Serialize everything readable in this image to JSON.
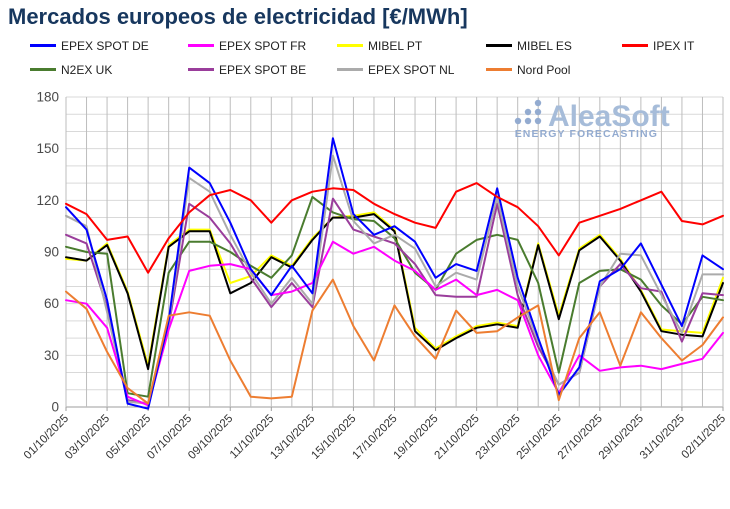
{
  "title": "Mercados europeos de electricidad [€/MWh]",
  "watermark": {
    "name": "AleaSoft",
    "tagline": "ENERGY FORECASTING",
    "color": "#a6bcd9",
    "tagline_color": "#93abd0"
  },
  "chart_data": {
    "type": "line",
    "title": "Mercados europeos de electricidad [€/MWh]",
    "xlabel": "",
    "ylabel": "",
    "ylim": [
      0,
      180
    ],
    "y_tick_step": 30,
    "y_minor_step": 10,
    "x_label_every": 2,
    "grid": "on",
    "legend_position": "top",
    "x_labels": [
      "01/10/2025",
      "02/10/2025",
      "03/10/2025",
      "04/10/2025",
      "05/10/2025",
      "06/10/2025",
      "07/10/2025",
      "08/10/2025",
      "09/10/2025",
      "10/10/2025",
      "11/10/2025",
      "12/10/2025",
      "13/10/2025",
      "14/10/2025",
      "15/10/2025",
      "16/10/2025",
      "17/10/2025",
      "18/10/2025",
      "19/10/2025",
      "20/10/2025",
      "21/10/2025",
      "22/10/2025",
      "23/10/2025",
      "24/10/2025",
      "25/10/2025",
      "26/10/2025",
      "27/10/2025",
      "28/10/2025",
      "29/10/2025",
      "30/10/2025",
      "31/10/2025",
      "01/11/2025",
      "02/11/2025"
    ],
    "series": [
      {
        "name": "EPEX SPOT DE",
        "color": "#0000ff",
        "values": [
          116,
          103,
          62,
          2,
          -1,
          50,
          139,
          130,
          107,
          80,
          65,
          82,
          66,
          156,
          112,
          100,
          105,
          96,
          75,
          83,
          79,
          127,
          75,
          40,
          7,
          23,
          73,
          80,
          95,
          71,
          47,
          88,
          80
        ]
      },
      {
        "name": "EPEX SPOT FR",
        "color": "#ff00ff",
        "values": [
          62,
          60,
          46,
          6,
          1,
          45,
          79,
          82,
          83,
          80,
          65,
          67,
          72,
          96,
          89,
          93,
          85,
          79,
          68,
          74,
          65,
          68,
          62,
          30,
          8,
          30,
          21,
          23,
          24,
          22,
          25,
          28,
          43
        ]
      },
      {
        "name": "MIBEL PT",
        "color": "#ffff00",
        "values": [
          86,
          85,
          95,
          67,
          24,
          94,
          103,
          103,
          72,
          76,
          88,
          82,
          98,
          110,
          111,
          113,
          103,
          46,
          34,
          41,
          47,
          49,
          47,
          95,
          53,
          92,
          100,
          86,
          68,
          45,
          44,
          43,
          75
        ]
      },
      {
        "name": "MIBEL ES",
        "color": "#000000",
        "values": [
          87,
          85,
          94,
          66,
          22,
          93,
          102,
          102,
          66,
          72,
          87,
          81,
          97,
          110,
          110,
          112,
          102,
          44,
          33,
          40,
          46,
          48,
          46,
          94,
          51,
          91,
          99,
          85,
          67,
          44,
          42,
          41,
          72
        ]
      },
      {
        "name": "IPEX IT",
        "color": "#ff0000",
        "values": [
          118,
          112,
          97,
          99,
          78,
          98,
          113,
          123,
          126,
          120,
          107,
          120,
          125,
          127,
          126,
          118,
          112,
          107,
          104,
          125,
          130,
          122,
          116,
          105,
          88,
          107,
          111,
          115,
          120,
          125,
          108,
          106,
          111
        ]
      },
      {
        "name": "N2EX UK",
        "color": "#4a7c2f",
        "values": [
          93,
          90,
          89,
          8,
          6,
          78,
          96,
          96,
          90,
          82,
          75,
          88,
          122,
          113,
          109,
          108,
          98,
          78,
          68,
          89,
          97,
          100,
          97,
          72,
          20,
          72,
          79,
          80,
          74,
          59,
          48,
          64,
          62
        ]
      },
      {
        "name": "EPEX SPOT BE",
        "color": "#9a3d9b",
        "values": [
          100,
          95,
          58,
          4,
          2,
          47,
          118,
          110,
          95,
          75,
          58,
          72,
          58,
          121,
          103,
          99,
          95,
          83,
          65,
          64,
          64,
          118,
          65,
          35,
          13,
          20,
          70,
          83,
          69,
          67,
          38,
          66,
          65
        ]
      },
      {
        "name": "EPEX SPOT NL",
        "color": "#ababab",
        "values": [
          111,
          105,
          55,
          3,
          2,
          48,
          133,
          125,
          100,
          78,
          60,
          75,
          60,
          146,
          108,
          95,
          100,
          92,
          70,
          78,
          74,
          122,
          70,
          38,
          13,
          20,
          70,
          89,
          88,
          65,
          43,
          77,
          77
        ]
      },
      {
        "name": "Nord Pool",
        "color": "#ed7d31",
        "values": [
          67,
          57,
          32,
          11,
          2,
          53,
          55,
          53,
          27,
          6,
          5,
          6,
          56,
          74,
          47,
          27,
          59,
          41,
          28,
          56,
          43,
          44,
          52,
          59,
          4,
          40,
          55,
          24,
          55,
          40,
          27,
          36,
          52
        ]
      }
    ],
    "draw_order": [
      2,
      3,
      5,
      6,
      7,
      1,
      0,
      4,
      8
    ],
    "colors": {
      "title": "#17375e",
      "grid_minor_h": "#d9d9d9",
      "grid_daily_v": "#bdbdbd",
      "axis": "#9e9e9e",
      "tick_label_x": "#333333",
      "tick_label_y": "#4a4a4a"
    }
  }
}
